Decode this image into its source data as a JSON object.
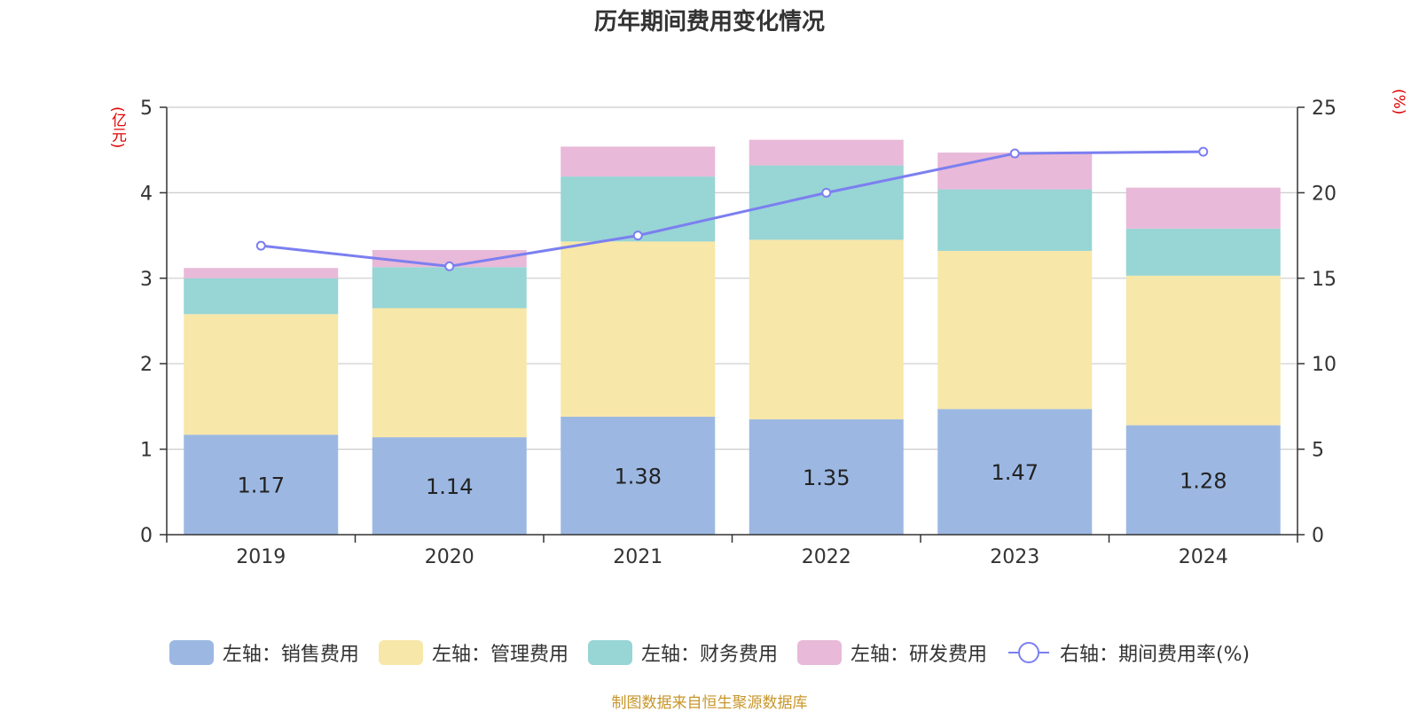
{
  "chart_data": {
    "type": "bar",
    "title": "历年期间费用变化情况",
    "left_unit": "(亿元)",
    "right_unit": "(%)",
    "categories": [
      "2019",
      "2020",
      "2021",
      "2022",
      "2023",
      "2024"
    ],
    "ylim": [
      0,
      5
    ],
    "y_ticks": [
      "0",
      "1",
      "2",
      "3",
      "4",
      "5"
    ],
    "y2lim": [
      0,
      25
    ],
    "y2_ticks": [
      "0",
      "5",
      "10",
      "15",
      "20",
      "25"
    ],
    "series": [
      {
        "name": "左轴：销售费用",
        "axis": "left",
        "type": "bar",
        "color": "#9cb8e2",
        "values": [
          1.17,
          1.14,
          1.38,
          1.35,
          1.47,
          1.28
        ],
        "labels": [
          "1.17",
          "1.14",
          "1.38",
          "1.35",
          "1.47",
          "1.28"
        ]
      },
      {
        "name": "左轴：管理费用",
        "axis": "left",
        "type": "bar",
        "color": "#f7e7a8",
        "values": [
          1.41,
          1.51,
          2.05,
          2.1,
          1.85,
          1.75
        ]
      },
      {
        "name": "左轴：财务费用",
        "axis": "left",
        "type": "bar",
        "color": "#98d5d5",
        "values": [
          0.42,
          0.48,
          0.76,
          0.87,
          0.72,
          0.55
        ]
      },
      {
        "name": "左轴：研发费用",
        "axis": "left",
        "type": "bar",
        "color": "#e8b9d8",
        "values": [
          0.12,
          0.2,
          0.35,
          0.3,
          0.43,
          0.48
        ]
      },
      {
        "name": "右轴：期间费用率(%)",
        "axis": "right",
        "type": "line",
        "color": "#7b7ff0",
        "values": [
          16.9,
          15.7,
          17.5,
          20.0,
          22.3,
          22.4
        ]
      }
    ]
  },
  "source": "制图数据来自恒生聚源数据库"
}
